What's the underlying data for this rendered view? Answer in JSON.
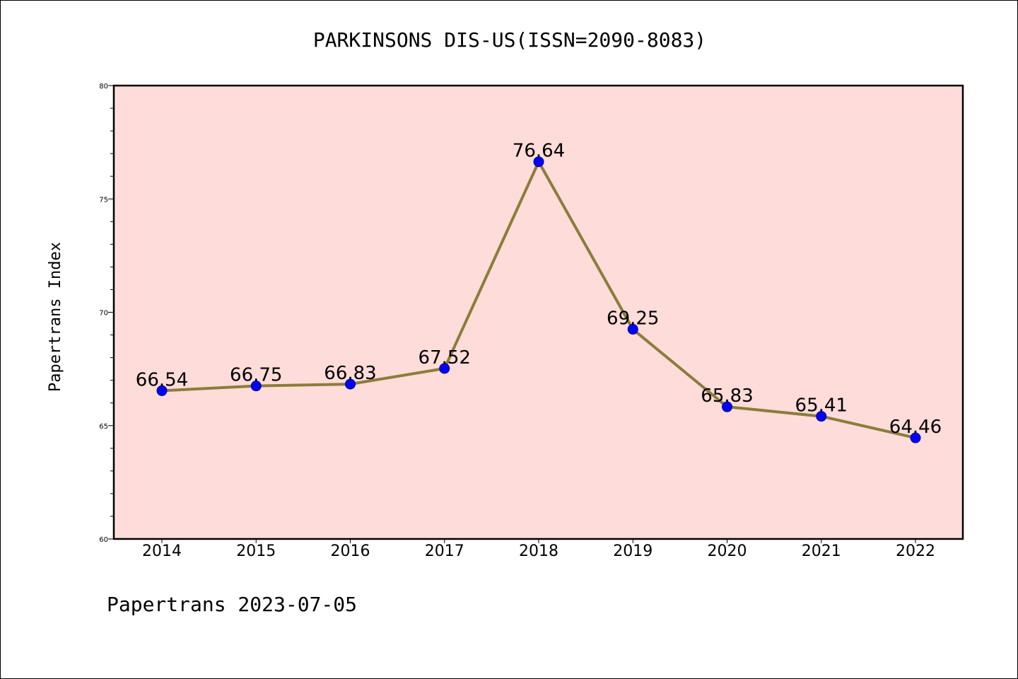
{
  "chart_data": {
    "type": "line",
    "title": "PARKINSONS DIS-US(ISSN=2090-8083)",
    "xlabel": "",
    "ylabel": "Papertrans Index",
    "categories": [
      "2014",
      "2015",
      "2016",
      "2017",
      "2018",
      "2019",
      "2020",
      "2021",
      "2022"
    ],
    "series": [
      {
        "values": [
          66.54,
          66.75,
          66.83,
          67.52,
          76.64,
          69.25,
          65.83,
          65.41,
          64.46
        ],
        "labels": [
          "66.54",
          "66.75",
          "66.83",
          "67.52",
          "76.64",
          "69.25",
          "65.83",
          "65.41",
          "64.46"
        ]
      }
    ],
    "ylim": [
      60,
      80
    ],
    "yticks": [
      "60",
      "65",
      "70",
      "75",
      "80"
    ],
    "grid": false,
    "legend": "none"
  },
  "footer": "Papertrans 2023-07-05",
  "colors": {
    "plot_background": "#fddcd9",
    "line": "#8b7d3a",
    "marker": "#0000ff",
    "axis": "#000000"
  }
}
